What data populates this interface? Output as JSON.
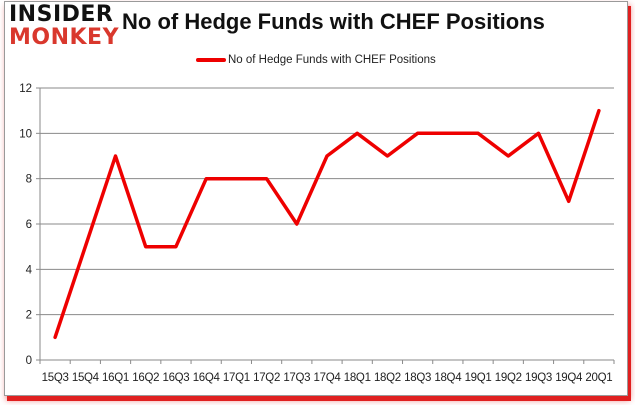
{
  "header": {
    "logo_line1": "INSIDER",
    "logo_line2": "MONKEY",
    "title": "No of Hedge Funds with CHEF Positions"
  },
  "legend": {
    "label": "No of Hedge Funds with CHEF Positions",
    "color": "#ee0000"
  },
  "chart_data": {
    "type": "line",
    "title": "No of Hedge Funds with CHEF Positions",
    "xlabel": "",
    "ylabel": "",
    "categories": [
      "15Q3",
      "15Q4",
      "16Q1",
      "16Q2",
      "16Q3",
      "16Q4",
      "17Q1",
      "17Q2",
      "17Q3",
      "17Q4",
      "18Q1",
      "18Q2",
      "18Q3",
      "18Q4",
      "19Q1",
      "19Q2",
      "19Q3",
      "19Q4",
      "20Q1"
    ],
    "series": [
      {
        "name": "No of Hedge Funds with CHEF Positions",
        "color": "#ee0000",
        "values": [
          1,
          5,
          9,
          5,
          5,
          8,
          8,
          8,
          6,
          9,
          10,
          9,
          10,
          10,
          10,
          9,
          10,
          7,
          11
        ]
      }
    ],
    "ylim": [
      0,
      12
    ],
    "yticks": [
      0,
      2,
      4,
      6,
      8,
      10,
      12
    ],
    "grid": true,
    "legend_position": "top"
  }
}
